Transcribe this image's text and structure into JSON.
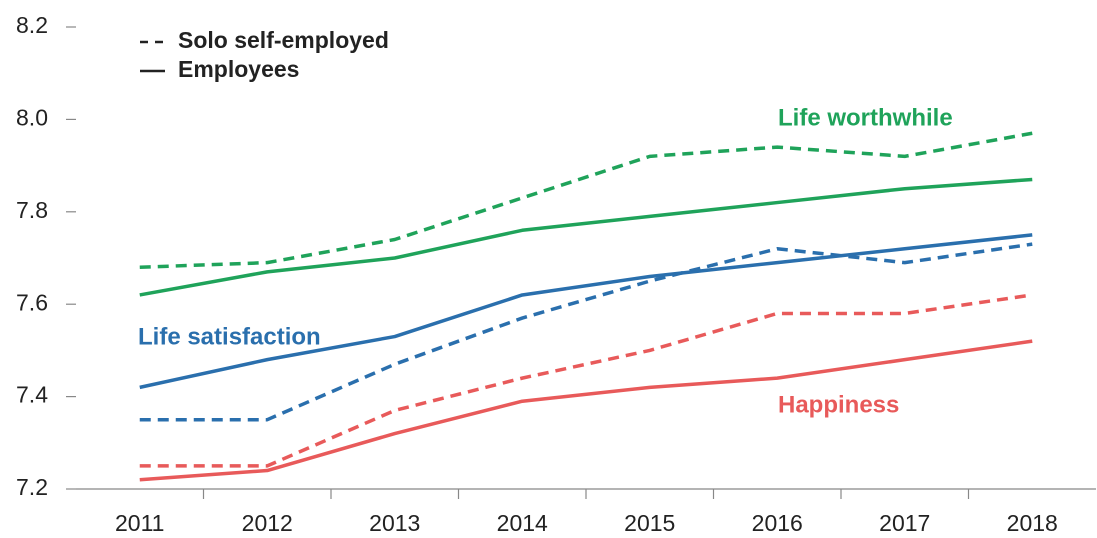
{
  "chart_data": {
    "type": "line",
    "categories": [
      "2011",
      "2012",
      "2013",
      "2014",
      "2015",
      "2016",
      "2017",
      "2018"
    ],
    "series": [
      {
        "color": "#1fa35a",
        "dash": true,
        "values": [
          7.68,
          7.69,
          7.74,
          7.83,
          7.92,
          7.94,
          7.92,
          7.97
        ]
      },
      {
        "color": "#1fa35a",
        "dash": false,
        "values": [
          7.62,
          7.67,
          7.7,
          7.76,
          7.79,
          7.82,
          7.85,
          7.87
        ]
      },
      {
        "color": "#2a6fad",
        "dash": true,
        "values": [
          7.35,
          7.35,
          7.47,
          7.57,
          7.65,
          7.72,
          7.69,
          7.73
        ]
      },
      {
        "color": "#2a6fad",
        "dash": false,
        "values": [
          7.42,
          7.48,
          7.53,
          7.62,
          7.66,
          7.69,
          7.72,
          7.75
        ]
      },
      {
        "color": "#e85a5a",
        "dash": true,
        "values": [
          7.25,
          7.25,
          7.37,
          7.44,
          7.5,
          7.58,
          7.58,
          7.62
        ]
      },
      {
        "color": "#e85a5a",
        "dash": false,
        "values": [
          7.22,
          7.24,
          7.32,
          7.39,
          7.42,
          7.44,
          7.48,
          7.52
        ]
      }
    ],
    "legend": [
      {
        "label": "Solo self-employed",
        "dash": true
      },
      {
        "label": "Employees",
        "dash": false
      }
    ],
    "annotations": [
      {
        "text": "Life worthwhile",
        "color": "#1fa35a"
      },
      {
        "text": "Life satisfaction",
        "color": "#2a6fad"
      },
      {
        "text": "Happiness",
        "color": "#e85a5a"
      }
    ],
    "ylim": [
      7.2,
      8.2
    ],
    "yticks": [
      7.2,
      7.4,
      7.6,
      7.8,
      {
        "value": 8.0,
        "label": "8.0"
      },
      8.2
    ]
  }
}
